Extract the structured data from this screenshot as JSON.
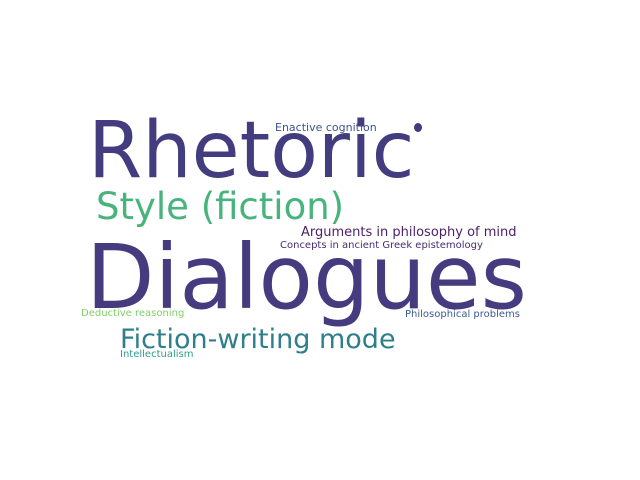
{
  "words": [
    {
      "text": "Rhetoric",
      "color": "#433c7f"
    },
    {
      "text": "Style (fiction)",
      "color": "#48b47c"
    },
    {
      "text": "Dialogues",
      "color": "#453b7e"
    },
    {
      "text": "Fiction-writing mode",
      "color": "#2e7f8c"
    },
    {
      "text": "Enactive cognition",
      "color": "#3b5590"
    },
    {
      "text": "Arguments in philosophy of mind",
      "color": "#4a1f6a"
    },
    {
      "text": "Concepts in ancient Greek epistemology",
      "color": "#4a2a72"
    },
    {
      "text": "Deductive reasoning",
      "color": "#7fcf67"
    },
    {
      "text": "Philosophical problems",
      "color": "#3c5a93"
    },
    {
      "text": "Intellectualism",
      "color": "#2f9d8b"
    }
  ],
  "dot_color": "#3f3b80"
}
